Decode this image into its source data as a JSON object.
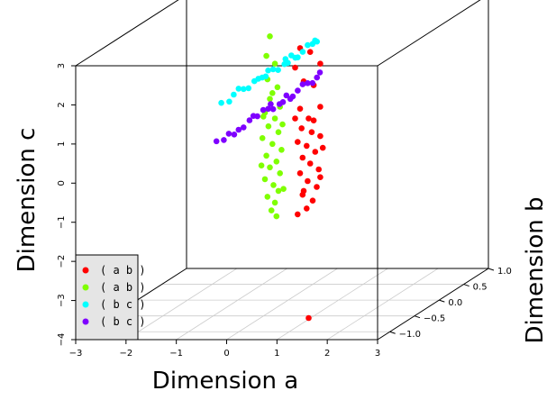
{
  "chart_data": {
    "type": "scatter",
    "projection": "3d",
    "xlabel": "Dimension a",
    "ylabel": "Dimension b",
    "zlabel": "Dimension c",
    "xlim": [
      -3,
      3
    ],
    "ylim": [
      -1.25,
      1.0
    ],
    "zlim": [
      -4,
      3
    ],
    "x_ticks": [
      "−3",
      "−2",
      "−1",
      "0",
      "1",
      "2",
      "3"
    ],
    "y_ticks": [
      "−1.0",
      "−0.5",
      "0.0",
      "0.5",
      "1.0"
    ],
    "y_tick_values": [
      -1.0,
      -0.5,
      0.0,
      0.5,
      1.0
    ],
    "z_ticks": [
      "−4",
      "−3",
      "−2",
      "−1",
      "0",
      "1",
      "2",
      "3"
    ],
    "grid": true,
    "legend_position": "bottom-left",
    "series": [
      {
        "name": "( a b )",
        "color": "#ff0000",
        "points": [
          [
            0.55,
            -0.32,
            2.7
          ],
          [
            0.75,
            -0.32,
            2.6
          ],
          [
            0.45,
            -0.32,
            2.2
          ],
          [
            0.95,
            -0.32,
            2.3
          ],
          [
            0.62,
            -0.32,
            1.85
          ],
          [
            0.82,
            -0.32,
            1.75
          ],
          [
            0.95,
            -0.32,
            1.2
          ],
          [
            0.55,
            -0.32,
            1.15
          ],
          [
            0.72,
            -0.32,
            0.9
          ],
          [
            0.58,
            -0.32,
            0.65
          ],
          [
            0.78,
            -0.32,
            0.55
          ],
          [
            0.95,
            -0.32,
            0.45
          ],
          [
            0.5,
            -0.32,
            0.3
          ],
          [
            0.68,
            -0.32,
            0.2
          ],
          [
            0.85,
            -0.32,
            0.05
          ],
          [
            0.6,
            -0.32,
            -0.1
          ],
          [
            0.75,
            -0.32,
            -0.25
          ],
          [
            0.92,
            -0.32,
            -0.4
          ],
          [
            0.55,
            -0.32,
            -0.5
          ],
          [
            0.7,
            -0.32,
            -0.7
          ],
          [
            0.88,
            -0.32,
            -0.85
          ],
          [
            0.6,
            -0.32,
            -1.05
          ],
          [
            0.8,
            -0.32,
            -1.2
          ],
          [
            0.68,
            -0.32,
            -1.4
          ],
          [
            0.5,
            -0.32,
            -1.55
          ],
          [
            0.95,
            -0.32,
            -0.6
          ],
          [
            0.45,
            -0.32,
            0.9
          ],
          [
            1.0,
            -0.32,
            0.15
          ],
          [
            0.62,
            -0.32,
            -0.95
          ],
          [
            0.82,
            -0.32,
            0.85
          ],
          [
            0.72,
            -0.32,
            -4.2
          ]
        ]
      },
      {
        "name": "( a b )",
        "color": "#7fff00",
        "points": [
          [
            -0.05,
            -0.32,
            3.0
          ],
          [
            -0.12,
            -0.32,
            2.5
          ],
          [
            0.05,
            -0.32,
            2.3
          ],
          [
            -0.1,
            -0.32,
            1.9
          ],
          [
            0.1,
            -0.32,
            1.7
          ],
          [
            -0.05,
            -0.32,
            1.4
          ],
          [
            0.15,
            -0.32,
            1.2
          ],
          [
            -0.15,
            -0.32,
            1.05
          ],
          [
            0.05,
            -0.32,
            0.9
          ],
          [
            -0.08,
            -0.32,
            0.7
          ],
          [
            0.12,
            -0.32,
            0.55
          ],
          [
            -0.2,
            -0.32,
            0.4
          ],
          [
            0.0,
            -0.32,
            0.25
          ],
          [
            0.18,
            -0.32,
            0.1
          ],
          [
            -0.12,
            -0.32,
            -0.05
          ],
          [
            0.08,
            -0.32,
            -0.2
          ],
          [
            -0.05,
            -0.32,
            -0.35
          ],
          [
            0.15,
            -0.32,
            -0.5
          ],
          [
            -0.15,
            -0.32,
            -0.65
          ],
          [
            0.02,
            -0.32,
            -0.8
          ],
          [
            0.12,
            -0.32,
            -0.95
          ],
          [
            -0.1,
            -0.32,
            -1.1
          ],
          [
            0.05,
            -0.32,
            -1.25
          ],
          [
            -0.02,
            -0.32,
            -1.45
          ],
          [
            0.08,
            -0.32,
            -1.6
          ],
          [
            -0.18,
            -0.32,
            0.95
          ],
          [
            0.2,
            -0.32,
            0.75
          ],
          [
            -0.22,
            -0.32,
            -0.3
          ],
          [
            0.22,
            -0.32,
            -0.9
          ],
          [
            0.0,
            -0.32,
            1.55
          ]
        ]
      },
      {
        "name": "( b c )",
        "color": "#00ffff",
        "points": [
          [
            -0.35,
            -1.0,
            1.85
          ],
          [
            -0.3,
            -0.8,
            1.9
          ],
          [
            -0.3,
            -0.6,
            1.88
          ],
          [
            -0.28,
            -0.4,
            1.92
          ],
          [
            -0.32,
            -0.2,
            1.85
          ],
          [
            -0.3,
            0.0,
            1.9
          ],
          [
            -0.27,
            0.2,
            1.87
          ],
          [
            -0.33,
            0.4,
            1.93
          ],
          [
            -0.3,
            0.6,
            1.86
          ],
          [
            -0.3,
            0.8,
            1.9
          ],
          [
            -0.31,
            0.9,
            1.88
          ],
          [
            -0.29,
            -0.9,
            1.8
          ],
          [
            -0.3,
            -0.1,
            1.95
          ],
          [
            -0.3,
            0.3,
            1.82
          ],
          [
            -0.3,
            0.7,
            1.95
          ],
          [
            -0.3,
            -0.5,
            1.82
          ],
          [
            -0.3,
            0.1,
            1.8
          ],
          [
            -0.3,
            -0.7,
            1.97
          ],
          [
            -0.3,
            0.5,
            1.8
          ],
          [
            -0.3,
            -0.3,
            1.9
          ],
          [
            -0.3,
            0.85,
            1.95
          ],
          [
            -0.3,
            -0.15,
            1.84
          ],
          [
            -0.3,
            0.25,
            1.96
          ],
          [
            -0.3,
            0.45,
            1.83
          ]
        ]
      },
      {
        "name": "( b c )",
        "color": "#7f00ff",
        "points": [
          [
            -0.35,
            -1.1,
            0.95
          ],
          [
            -0.3,
            -0.9,
            0.98
          ],
          [
            -0.3,
            -0.7,
            0.92
          ],
          [
            -0.28,
            -0.5,
            1.0
          ],
          [
            -0.32,
            -0.3,
            0.94
          ],
          [
            -0.3,
            -0.1,
            0.97
          ],
          [
            -0.27,
            0.1,
            0.93
          ],
          [
            -0.33,
            0.3,
            0.99
          ],
          [
            -0.3,
            0.5,
            0.95
          ],
          [
            -0.3,
            0.7,
            0.98
          ],
          [
            -0.31,
            0.9,
            0.96
          ],
          [
            -0.29,
            -0.8,
            0.88
          ],
          [
            -0.3,
            -0.2,
            1.02
          ],
          [
            -0.3,
            0.2,
            0.9
          ],
          [
            -0.3,
            0.6,
            1.03
          ],
          [
            -0.3,
            -0.6,
            0.9
          ],
          [
            -0.3,
            0.0,
            0.88
          ],
          [
            -0.3,
            -0.4,
            1.03
          ],
          [
            -0.3,
            0.4,
            0.88
          ],
          [
            -0.3,
            0.8,
            0.9
          ],
          [
            -0.3,
            -1.0,
            0.9
          ],
          [
            -0.3,
            0.95,
            1.05
          ],
          [
            -0.3,
            -0.05,
            1.05
          ],
          [
            -0.3,
            0.35,
            0.86
          ]
        ]
      }
    ]
  }
}
